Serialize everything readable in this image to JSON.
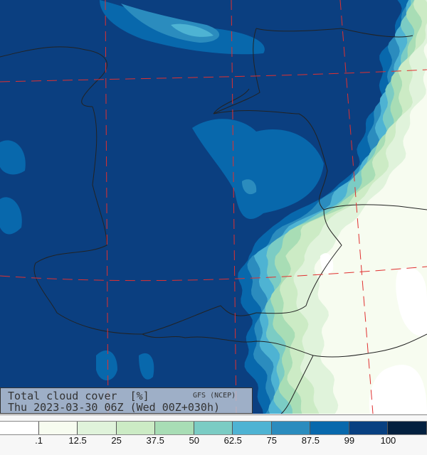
{
  "title": {
    "line1": "Total cloud cover  [%]",
    "source": "GFS (NCEP)",
    "line2": "Thu 2023-03-30 06Z (Wed 00Z+030h)"
  },
  "legend": {
    "colors": [
      "#ffffff",
      "#f7fcf0",
      "#e0f3db",
      "#ccebc5",
      "#a8ddb5",
      "#7bccc4",
      "#4eb3d3",
      "#2b8cbe",
      "#0868ac",
      "#084081",
      "#03203f"
    ],
    "ticks": [
      ".1",
      "12.5",
      "25",
      "37.5",
      "50",
      "62.5",
      "75",
      "87.5",
      "99",
      "100"
    ]
  },
  "map": {
    "variable": "total cloud cover",
    "unit": "%",
    "base_color": "#0b3f80",
    "border_color": "#222222",
    "grid_color": "#e03030"
  }
}
